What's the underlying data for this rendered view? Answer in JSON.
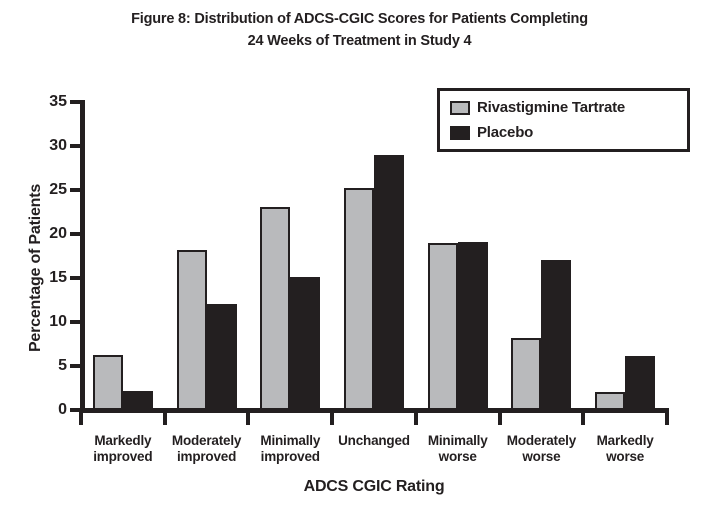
{
  "figure": {
    "title_line1": "Figure 8: Distribution of ADCS-CGIC Scores for Patients Completing",
    "title_line2": "24 Weeks of Treatment in Study 4"
  },
  "chart_data": {
    "type": "bar",
    "title": "Figure 8: Distribution of ADCS-CGIC Scores for Patients Completing 24 Weeks of Treatment in Study 4",
    "categories": [
      "Markedly improved",
      "Moderately improved",
      "Minimally improved",
      "Unchanged",
      "Minimally worse",
      "Moderately worse",
      "Markedly worse"
    ],
    "series": [
      {
        "name": "Rivastigmine Tartrate",
        "color": "#b9babc",
        "values": [
          6.3,
          18.2,
          23.1,
          25.2,
          19.0,
          8.2,
          2.0
        ]
      },
      {
        "name": "Placebo",
        "color": "#231f20",
        "values": [
          2.2,
          12.0,
          15.1,
          29.0,
          19.1,
          17.0,
          6.1
        ]
      }
    ],
    "xlabel": "ADCS CGIC Rating",
    "ylabel": "Percentage of Patients",
    "ylim": [
      0,
      35
    ],
    "ytick_step": 5,
    "yticks": [
      0,
      5,
      10,
      15,
      20,
      25,
      30,
      35
    ],
    "legend_position": "top-right",
    "grid": false,
    "axis_color": "#231f20",
    "text_color": "#231f20",
    "background_color": "#ffffff"
  }
}
